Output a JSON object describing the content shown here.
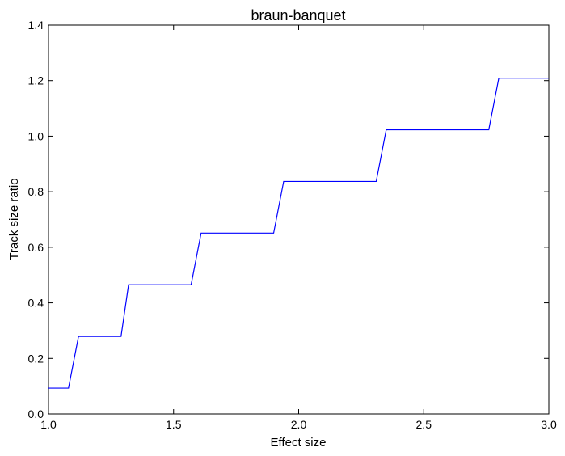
{
  "chart_data": {
    "type": "line",
    "title": "braun-banquet",
    "xlabel": "Effect size",
    "ylabel": "Track size ratio",
    "xlim": [
      1.0,
      3.0
    ],
    "ylim": [
      0.0,
      1.4
    ],
    "x_ticks": [
      "1.0",
      "1.5",
      "2.0",
      "2.5",
      "3.0"
    ],
    "y_ticks": [
      "0.0",
      "0.2",
      "0.4",
      "0.6",
      "0.8",
      "1.0",
      "1.2",
      "1.4"
    ],
    "grid": false,
    "series": [
      {
        "color": "#0000ff",
        "x": [
          1.0,
          1.08,
          1.12,
          1.29,
          1.32,
          1.57,
          1.61,
          1.9,
          1.94,
          2.31,
          2.35,
          2.76,
          2.8,
          3.0
        ],
        "y": [
          0.093,
          0.093,
          0.279,
          0.279,
          0.465,
          0.465,
          0.651,
          0.651,
          0.837,
          0.837,
          1.023,
          1.023,
          1.209,
          1.209
        ]
      }
    ]
  }
}
